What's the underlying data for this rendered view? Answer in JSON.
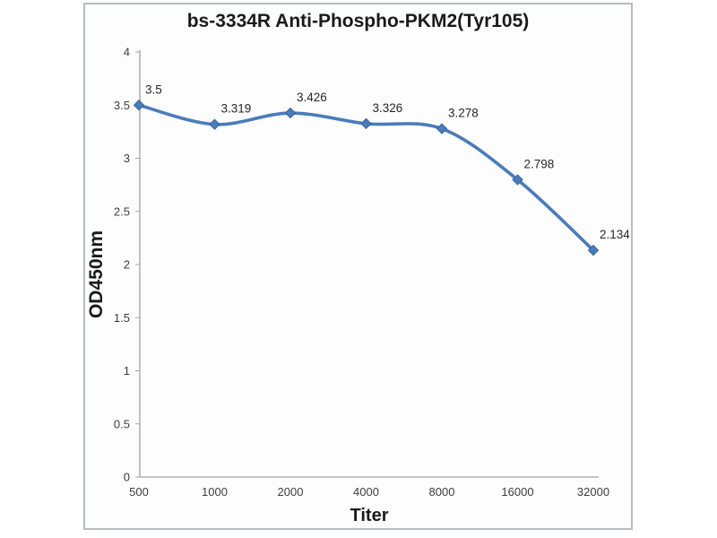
{
  "chart_data": {
    "type": "line",
    "title": "bs-3334R Anti-Phospho-PKM2(Tyr105)",
    "categories": [
      "500",
      "1000",
      "2000",
      "4000",
      "8000",
      "16000",
      "32000"
    ],
    "series": [
      {
        "name": "Anti-Phospho-PKM2(Tyr105)",
        "values": [
          3.5,
          3.319,
          3.426,
          3.326,
          3.278,
          2.798,
          2.134
        ],
        "point_labels": [
          "3.5",
          "3.319",
          "3.426",
          "3.326",
          "3.278",
          "2.798",
          "2.134"
        ]
      }
    ],
    "xlabel": "Titer",
    "ylabel": "OD450nm",
    "ylim": [
      0,
      4
    ],
    "y_ticks": [
      "4",
      "3.5",
      "3",
      "2.5",
      "2",
      "1.5",
      "1",
      "0.5",
      "0"
    ],
    "y_tick_values": [
      4,
      3.5,
      3,
      2.5,
      2,
      1.5,
      1,
      0.5,
      0
    ],
    "grid": false,
    "legend": "none",
    "line_style": "smooth",
    "marker": "diamond",
    "colors": {
      "series_line": "#4a7cba",
      "marker_fill": "#4a7cba",
      "marker_edge": "#3a6496",
      "axis_line": "#a3a3a3",
      "frame_border": "#b9bcbe",
      "plot_background": "#fdfdfd",
      "title_text": "#1a1a1a",
      "tick_text": "#3d3d3d",
      "data_label_text": "#262626"
    }
  }
}
